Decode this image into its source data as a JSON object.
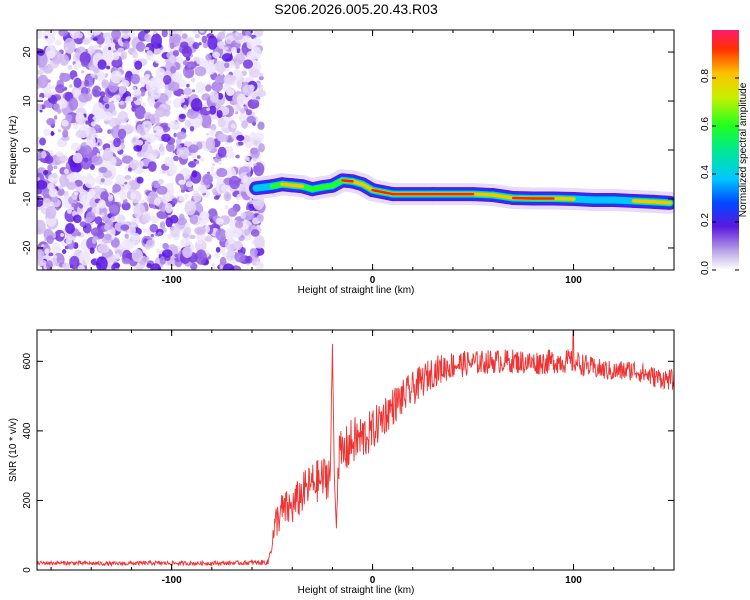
{
  "chart_data": [
    {
      "type": "heatmap",
      "title": "S206.2026.005.20.43.R03",
      "xlabel": "Height of straight line (km)",
      "ylabel": "Frequency (Hz)",
      "xlim": [
        -167,
        150
      ],
      "ylim": [
        -24.5,
        24.5
      ],
      "xticks": [
        -100,
        0,
        100
      ],
      "yticks": [
        -20,
        -10,
        0,
        10,
        20
      ],
      "noise_region_x": [
        -167,
        -55
      ],
      "ridge": {
        "x": [
          -58,
          -50,
          -45,
          -40,
          -35,
          -30,
          -25,
          -20,
          -15,
          -10,
          -5,
          0,
          10,
          30,
          50,
          60,
          70,
          80,
          90,
          100,
          110,
          120,
          130,
          140,
          148
        ],
        "y": [
          -7.8,
          -7.4,
          -7.0,
          -7.2,
          -7.4,
          -8.0,
          -7.6,
          -7.3,
          -6.2,
          -6.4,
          -7.0,
          -8.2,
          -9.0,
          -9.0,
          -9.0,
          -9.2,
          -9.8,
          -9.9,
          -9.9,
          -10.0,
          -10.2,
          -10.2,
          -10.4,
          -10.6,
          -10.8
        ],
        "level": [
          0.45,
          0.7,
          0.95,
          0.85,
          0.9,
          0.6,
          0.85,
          0.7,
          0.95,
          0.9,
          0.75,
          0.95,
          0.95,
          0.9,
          0.9,
          0.85,
          0.98,
          0.98,
          0.97,
          0.8,
          0.5,
          0.45,
          0.85,
          0.98,
          0.85
        ]
      },
      "colorbar": {
        "label": "Normalized spectral amplitude",
        "range": [
          0.0,
          1.0
        ],
        "ticks": [
          "0.0",
          "0.2",
          "0.4",
          "0.6",
          "0.8"
        ]
      }
    },
    {
      "type": "line",
      "xlabel": "Height of straight line (km)",
      "ylabel": "SNR (10 * v/v)",
      "xlim": [
        -167,
        150
      ],
      "ylim": [
        0,
        690
      ],
      "xticks": [
        -100,
        0,
        100
      ],
      "yticks": [
        0,
        200,
        400,
        600
      ],
      "color": "#ee3333",
      "series": [
        {
          "name": "SNR",
          "x": [
            -167,
            -150,
            -130,
            -110,
            -90,
            -70,
            -52,
            -48,
            -45,
            -40,
            -35,
            -30,
            -25,
            -21,
            -20,
            -19,
            -18,
            -17,
            -15,
            -10,
            -5,
            0,
            5,
            10,
            20,
            30,
            40,
            50,
            60,
            70,
            80,
            90,
            100,
            110,
            120,
            130,
            140,
            150
          ],
          "y": [
            20,
            20,
            18,
            20,
            19,
            20,
            22,
            140,
            170,
            180,
            220,
            250,
            260,
            280,
            650,
            260,
            120,
            330,
            330,
            370,
            380,
            400,
            440,
            470,
            520,
            570,
            590,
            595,
            600,
            600,
            595,
            600,
            600,
            580,
            570,
            575,
            555,
            545
          ],
          "noise": [
            6,
            6,
            6,
            6,
            6,
            6,
            8,
            50,
            55,
            55,
            60,
            60,
            65,
            70,
            0,
            0,
            0,
            70,
            70,
            70,
            70,
            60,
            60,
            55,
            50,
            45,
            40,
            35,
            35,
            35,
            35,
            35,
            35,
            30,
            30,
            30,
            30,
            30
          ]
        }
      ]
    }
  ]
}
